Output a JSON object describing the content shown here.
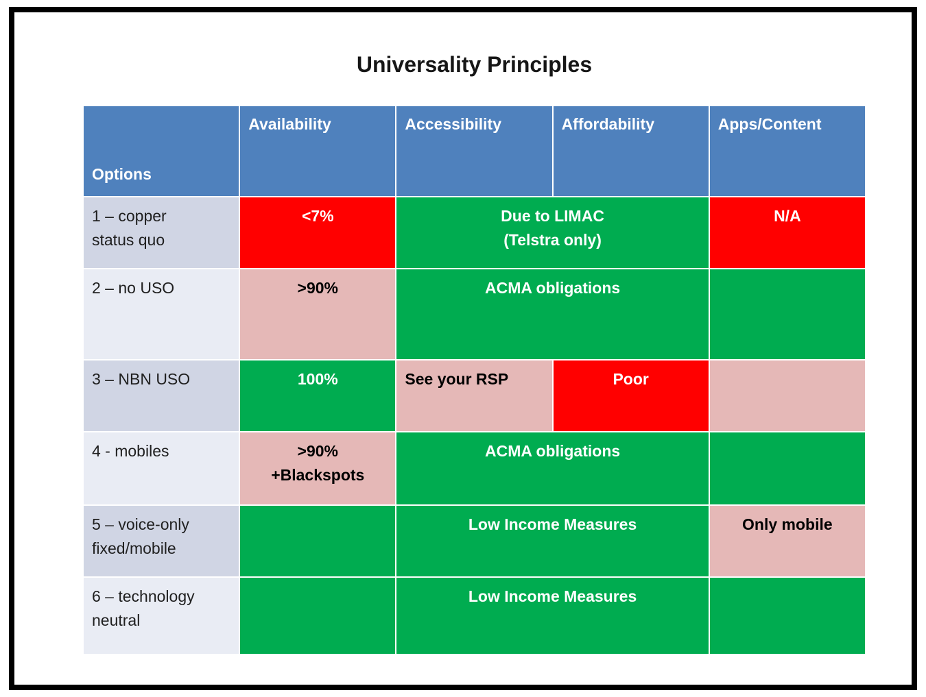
{
  "title": "Universality Principles",
  "colors": {
    "frame_border": "#000000",
    "header_bg": "#4F81BD",
    "header_text": "#FFFFFF",
    "band_dark": "#D0D5E4",
    "band_light": "#E9ECF4",
    "green": "#00AC50",
    "red": "#FF0000",
    "pink": "#E5B8B7",
    "text_white": "#FFFFFF",
    "text_black": "#000000",
    "label_text": "#202020"
  },
  "table": {
    "columns": [
      "Options",
      "Availability",
      "Accessibility",
      "Affordability",
      "Apps/Content"
    ],
    "rows": [
      {
        "label": "1 – copper\nstatus quo",
        "cells": [
          {
            "text": "<7%",
            "bg": "red",
            "fg": "white",
            "span": 1,
            "align": "center"
          },
          {
            "text": "Due to LIMAC\n(Telstra only)",
            "bg": "green",
            "fg": "white",
            "span": 2,
            "align": "center"
          },
          {
            "text": "N/A",
            "bg": "red",
            "fg": "white",
            "span": 1,
            "align": "center"
          }
        ]
      },
      {
        "label": "2 – no USO",
        "cells": [
          {
            "text": ">90%",
            "bg": "pink",
            "fg": "black",
            "span": 1,
            "align": "center"
          },
          {
            "text": "ACMA obligations",
            "bg": "green",
            "fg": "white",
            "span": 2,
            "align": "center"
          },
          {
            "text": "",
            "bg": "green",
            "fg": "white",
            "span": 1,
            "align": "center"
          }
        ]
      },
      {
        "label": "3 – NBN USO",
        "cells": [
          {
            "text": "100%",
            "bg": "green",
            "fg": "white",
            "span": 1,
            "align": "center"
          },
          {
            "text": "See your RSP",
            "bg": "pink",
            "fg": "black",
            "span": 1,
            "align": "left"
          },
          {
            "text": "Poor",
            "bg": "red",
            "fg": "white",
            "span": 1,
            "align": "center"
          },
          {
            "text": "",
            "bg": "pink",
            "fg": "black",
            "span": 1,
            "align": "center"
          }
        ]
      },
      {
        "label": "4 - mobiles",
        "cells": [
          {
            "text": ">90%\n+Blackspots",
            "bg": "pink",
            "fg": "black",
            "span": 1,
            "align": "center"
          },
          {
            "text": "ACMA obligations",
            "bg": "green",
            "fg": "white",
            "span": 2,
            "align": "center"
          },
          {
            "text": "",
            "bg": "green",
            "fg": "white",
            "span": 1,
            "align": "center"
          }
        ]
      },
      {
        "label": "5 – voice-only\nfixed/mobile",
        "cells": [
          {
            "text": "",
            "bg": "green",
            "fg": "white",
            "span": 1,
            "align": "center"
          },
          {
            "text": "Low Income Measures",
            "bg": "green",
            "fg": "white",
            "span": 2,
            "align": "center"
          },
          {
            "text": "Only mobile",
            "bg": "pink",
            "fg": "black",
            "span": 1,
            "align": "center"
          }
        ]
      },
      {
        "label": "6 – technology\nneutral",
        "cells": [
          {
            "text": "",
            "bg": "green",
            "fg": "white",
            "span": 1,
            "align": "center"
          },
          {
            "text": "Low Income Measures",
            "bg": "green",
            "fg": "white",
            "span": 2,
            "align": "center"
          },
          {
            "text": "",
            "bg": "green",
            "fg": "white",
            "span": 1,
            "align": "center"
          }
        ]
      }
    ]
  }
}
